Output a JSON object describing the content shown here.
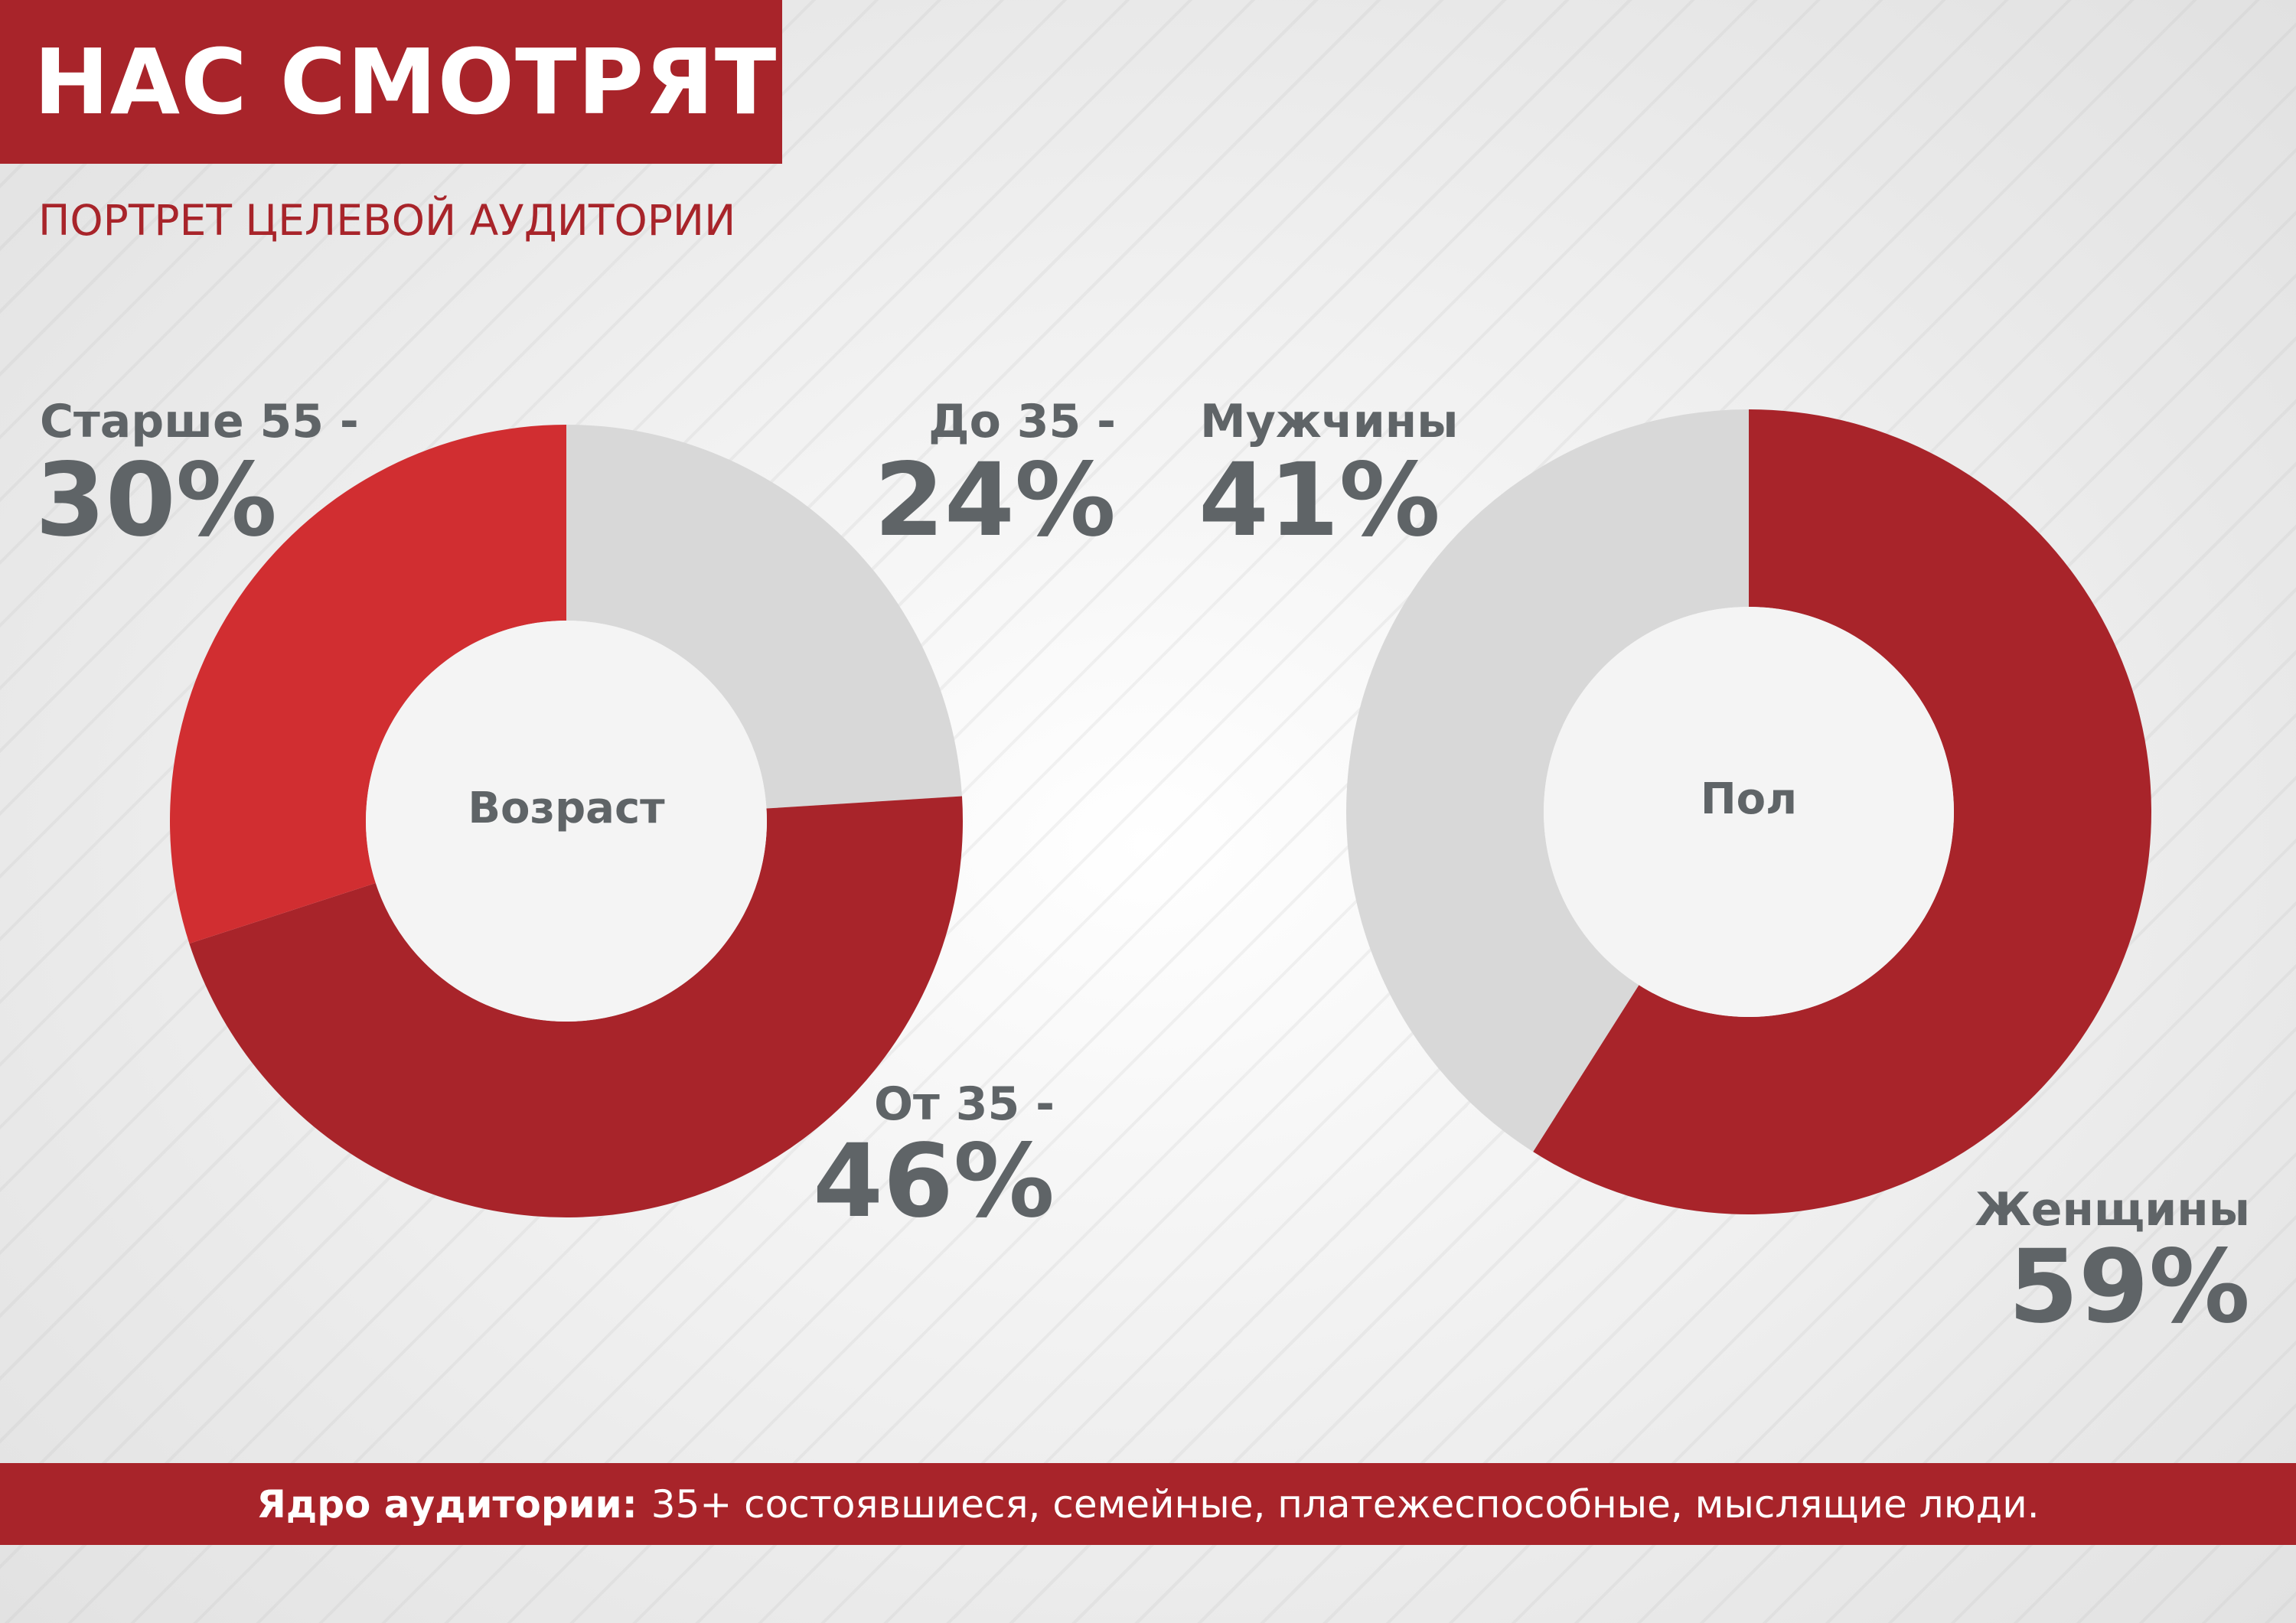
{
  "header": {
    "title": "НАС СМОТРЯТ",
    "subtitle": "ПОРТРЕТ ЦЕЛЕВОЙ АУДИТОРИИ"
  },
  "colors": {
    "brand_red": "#a8242a",
    "light_red": "#d12e31",
    "segment_grey": "#d8d8d8",
    "label_grey": "#5f6467"
  },
  "chart_data": [
    {
      "type": "pie",
      "title": "Возраст",
      "series": [
        {
          "name": "До 35",
          "label": "До 35 -",
          "value": 24,
          "display": "24%",
          "color": "#d8d8d8"
        },
        {
          "name": "От 35",
          "label": "От 35 -",
          "value": 46,
          "display": "46%",
          "color": "#a8242a"
        },
        {
          "name": "Старше 55",
          "label": "Старше 55 -",
          "value": 30,
          "display": "30%",
          "color": "#d12e31"
        }
      ]
    },
    {
      "type": "pie",
      "title": "Пол",
      "series": [
        {
          "name": "Женщины",
          "label": "Женщины",
          "value": 59,
          "display": "59%",
          "color": "#a8242a"
        },
        {
          "name": "Мужчины",
          "label": "Мужчины",
          "value": 41,
          "display": "41%",
          "color": "#d8d8d8"
        }
      ]
    }
  ],
  "footer": {
    "bold": "Ядро аудитории:",
    "text": "35+ состоявшиеся, семейные, платежеспособные, мыслящие люди."
  }
}
